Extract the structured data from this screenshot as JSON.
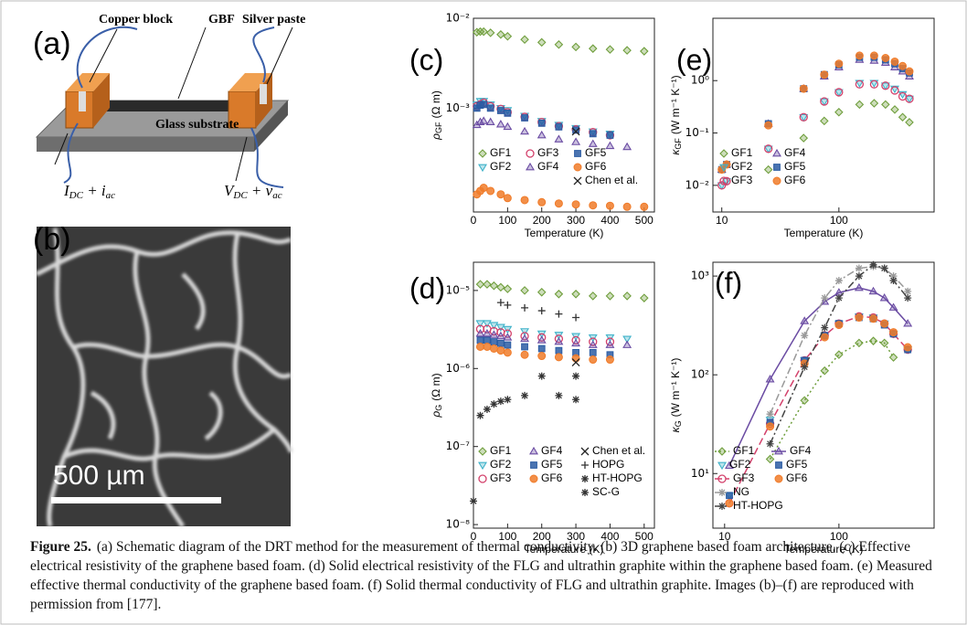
{
  "schematic": {
    "label": "(a)",
    "copper": "Copper block",
    "gbf": "GBF",
    "silver": "Silver paste",
    "substrate": "Glass substrate",
    "current": [
      "I",
      "DC",
      " + i",
      "ac"
    ],
    "voltage": [
      "V",
      "DC",
      " + v",
      "ac"
    ]
  },
  "sem": {
    "label": "(b)",
    "scale_bar": "500 µm"
  },
  "chart_data": [
    {
      "type": "scatter",
      "label": "(c)",
      "x_label": "Temperature (K)",
      "y_label": {
        "symbol": "ρ",
        "sub": "GF",
        "unit": "(Ω m)"
      },
      "x_log": false,
      "y_log": true,
      "xlim": [
        0,
        530
      ],
      "ylim": [
        7e-05,
        0.01
      ],
      "xticks": [
        0,
        100,
        200,
        300,
        400,
        500
      ],
      "yticks": [
        {
          "value": 0.001,
          "label": "10⁻³"
        },
        {
          "value": 0.01,
          "label": "10⁻²"
        }
      ],
      "x": [
        10,
        20,
        30,
        50,
        80,
        100,
        150,
        200,
        250,
        300,
        350,
        400,
        450,
        500
      ],
      "series": [
        {
          "name": "GF1",
          "color": "#6f9e3c",
          "marker": "diamond",
          "values": [
            0.007,
            0.0071,
            0.0071,
            0.0069,
            0.0066,
            0.0063,
            0.0058,
            0.0054,
            0.0051,
            0.0048,
            0.0046,
            0.0045,
            0.0044,
            0.0043
          ]
        },
        {
          "name": "GF2",
          "color": "#3fb2c9",
          "marker": "triangle-down",
          "values": [
            0.0011,
            0.0012,
            0.0012,
            0.0011,
            0.001,
            0.00095,
            0.00082,
            0.00072,
            0.00065,
            0.0006,
            0.00055,
            0.00052,
            null,
            null
          ]
        },
        {
          "name": "GF3",
          "color": "#d3416b",
          "marker": "circle",
          "values": [
            0.00105,
            0.0011,
            0.00115,
            0.00105,
            0.00098,
            0.0009,
            0.0008,
            0.0007,
            0.00063,
            0.00058,
            0.00054,
            0.0005,
            null,
            null
          ]
        },
        {
          "name": "GF4",
          "color": "#6b4ca3",
          "marker": "triangle-up",
          "values": [
            0.00065,
            0.0007,
            0.00072,
            0.0007,
            0.00066,
            0.00062,
            0.00055,
            0.0005,
            0.00045,
            0.00042,
            0.0004,
            0.00038,
            0.00037,
            null
          ]
        },
        {
          "name": "GF5",
          "color": "#2b5ca3",
          "marker": "square",
          "values": [
            0.001,
            0.00108,
            0.0011,
            0.001,
            0.00094,
            0.00088,
            0.00078,
            0.00068,
            0.00062,
            0.00057,
            0.00052,
            0.0005,
            null,
            null
          ]
        },
        {
          "name": "GF6",
          "color": "#f07b29",
          "marker": "filled-circle",
          "values": [
            0.00011,
            0.00012,
            0.00013,
            0.00012,
            0.00011,
            0.0001,
            9.5e-05,
            9e-05,
            8.7e-05,
            8.5e-05,
            8.3e-05,
            8.2e-05,
            8e-05,
            8e-05
          ]
        },
        {
          "name": "Chen et al.",
          "color": "#222222",
          "marker": "x",
          "values": [
            null,
            null,
            null,
            null,
            null,
            null,
            null,
            null,
            null,
            0.00055,
            null,
            null,
            null,
            null
          ]
        }
      ]
    },
    {
      "type": "scatter",
      "label": "(d)",
      "x_label": "Temperature (K)",
      "y_label": {
        "symbol": "ρ",
        "sub": "G",
        "unit": "(Ω m)"
      },
      "x_log": false,
      "y_log": true,
      "xlim": [
        0,
        530
      ],
      "ylim": [
        9e-09,
        2.3e-05
      ],
      "xticks": [
        0,
        100,
        200,
        300,
        400,
        500
      ],
      "yticks": [
        {
          "value": 1e-08,
          "label": "10⁻⁸"
        },
        {
          "value": 1e-07,
          "label": "10⁻⁷"
        },
        {
          "value": 1e-06,
          "label": "10⁻⁶"
        },
        {
          "value": 1e-05,
          "label": "10⁻⁵"
        }
      ],
      "x": [
        0,
        20,
        40,
        60,
        80,
        100,
        150,
        200,
        250,
        300,
        350,
        400,
        450,
        500
      ],
      "series": [
        {
          "name": "GF1",
          "color": "#6f9e3c",
          "marker": "diamond",
          "values": [
            null,
            1.2e-05,
            1.2e-05,
            1.15e-05,
            1.1e-05,
            1.05e-05,
            1e-05,
            9.5e-06,
            9e-06,
            9e-06,
            8.5e-06,
            8.5e-06,
            8.5e-06,
            8e-06
          ]
        },
        {
          "name": "GF2",
          "color": "#3fb2c9",
          "marker": "triangle-down",
          "values": [
            null,
            3.8e-06,
            3.8e-06,
            3.6e-06,
            3.4e-06,
            3.2e-06,
            3e-06,
            2.8e-06,
            2.7e-06,
            2.6e-06,
            2.5e-06,
            2.5e-06,
            2.4e-06,
            null
          ]
        },
        {
          "name": "GF3",
          "color": "#d3416b",
          "marker": "circle",
          "values": [
            null,
            3.2e-06,
            3.2e-06,
            3e-06,
            2.9e-06,
            2.8e-06,
            2.6e-06,
            2.5e-06,
            2.4e-06,
            2.3e-06,
            2.2e-06,
            2.2e-06,
            null,
            null
          ]
        },
        {
          "name": "GF4",
          "color": "#6b4ca3",
          "marker": "triangle-up",
          "values": [
            null,
            2.8e-06,
            2.8e-06,
            2.7e-06,
            2.6e-06,
            2.5e-06,
            2.4e-06,
            2.3e-06,
            2.2e-06,
            2.1e-06,
            2e-06,
            2e-06,
            2e-06,
            null
          ]
        },
        {
          "name": "GF5",
          "color": "#2b5ca3",
          "marker": "square",
          "values": [
            null,
            2.3e-06,
            2.3e-06,
            2.2e-06,
            2.1e-06,
            2e-06,
            1.9e-06,
            1.8e-06,
            1.7e-06,
            1.6e-06,
            1.6e-06,
            1.5e-06,
            null,
            null
          ]
        },
        {
          "name": "GF6",
          "color": "#f07b29",
          "marker": "filled-circle",
          "values": [
            null,
            1.9e-06,
            1.9e-06,
            1.8e-06,
            1.7e-06,
            1.6e-06,
            1.5e-06,
            1.45e-06,
            1.4e-06,
            1.35e-06,
            1.3e-06,
            1.3e-06,
            null,
            null
          ]
        },
        {
          "name": "Chen et al.",
          "color": "#222222",
          "marker": "x",
          "values": [
            null,
            null,
            null,
            null,
            null,
            null,
            null,
            null,
            null,
            1.2e-06,
            null,
            null,
            null,
            null
          ]
        },
        {
          "name": "HOPG",
          "color": "#333333",
          "marker": "plus",
          "values": [
            null,
            null,
            null,
            null,
            7e-06,
            6.5e-06,
            6e-06,
            5.5e-06,
            5e-06,
            4.5e-06,
            null,
            null,
            null,
            null
          ]
        },
        {
          "name": "HT-HOPG",
          "color": "#333333",
          "marker": "asterisk",
          "values": [
            null,
            null,
            null,
            null,
            null,
            null,
            null,
            8e-07,
            null,
            8e-07,
            null,
            null,
            null,
            null
          ]
        },
        {
          "name": "SC-G",
          "color": "#333333",
          "marker": "asterisk",
          "values": [
            2e-08,
            2.5e-07,
            3e-07,
            3.5e-07,
            3.8e-07,
            4e-07,
            4.5e-07,
            null,
            4.5e-07,
            4e-07,
            null,
            null,
            null,
            null
          ]
        }
      ]
    },
    {
      "type": "scatter",
      "label": "(e)",
      "x_label": "Temperature (K)",
      "y_label": {
        "symbol": "κ",
        "sub": "GF",
        "unit": "(W m⁻¹ K⁻¹)"
      },
      "x_log": true,
      "y_log": true,
      "xlim": [
        8.4,
        650
      ],
      "ylim": [
        0.0031,
        15.5
      ],
      "xticks": [
        10,
        100
      ],
      "yticks": [
        {
          "value": 0.01,
          "label": "10⁻²"
        },
        {
          "value": 0.1,
          "label": "10⁻¹"
        },
        {
          "value": 1,
          "label": "10⁰"
        }
      ],
      "x": [
        10,
        11,
        25,
        50,
        75,
        100,
        150,
        200,
        250,
        300,
        350,
        400
      ],
      "series": [
        {
          "name": "GF1",
          "color": "#6f9e3c",
          "marker": "diamond",
          "values": [
            null,
            null,
            0.02,
            0.08,
            0.17,
            0.25,
            0.35,
            0.37,
            0.35,
            0.28,
            0.2,
            0.16
          ]
        },
        {
          "name": "GF2",
          "color": "#3fb2c9",
          "marker": "triangle-down",
          "values": [
            0.01,
            0.012,
            0.05,
            0.2,
            0.4,
            0.6,
            0.9,
            0.9,
            0.8,
            0.7,
            0.55,
            0.45
          ]
        },
        {
          "name": "GF3",
          "color": "#d3416b",
          "marker": "circle",
          "values": [
            0.01,
            0.012,
            0.05,
            0.2,
            0.4,
            0.6,
            0.85,
            0.85,
            0.8,
            0.65,
            0.5,
            0.45
          ]
        },
        {
          "name": "GF4",
          "color": "#6b4ca3",
          "marker": "triangle-up",
          "values": [
            0.02,
            0.025,
            0.15,
            0.7,
            1.2,
            1.8,
            2.5,
            2.4,
            2.2,
            1.8,
            1.5,
            1.2
          ]
        },
        {
          "name": "GF5",
          "color": "#2b5ca3",
          "marker": "square",
          "values": [
            0.02,
            0.025,
            0.15,
            0.7,
            1.3,
            2,
            2.8,
            2.8,
            2.5,
            2.1,
            1.7,
            1.4
          ]
        },
        {
          "name": "GF6",
          "color": "#f07b29",
          "marker": "filled-circle",
          "values": [
            0.02,
            0.025,
            0.14,
            0.7,
            1.3,
            2.1,
            3,
            3,
            2.7,
            2.3,
            1.9,
            1.5
          ]
        }
      ]
    },
    {
      "type": "scatter",
      "label": "(f)",
      "x_label": "Temperature (K)",
      "y_label": {
        "symbol": "κ",
        "sub": "G",
        "unit": "(W m⁻¹ K⁻¹)"
      },
      "x_log": true,
      "y_log": true,
      "xlim": [
        7.9,
        680
      ],
      "ylim": [
        2.8,
        1380
      ],
      "xticks": [
        10,
        100
      ],
      "yticks": [
        {
          "value": 10,
          "label": "10¹"
        },
        {
          "value": 100,
          "label": "10²"
        },
        {
          "value": 1000,
          "label": "10³"
        }
      ],
      "x": [
        11,
        25,
        50,
        75,
        100,
        150,
        200,
        250,
        300,
        400
      ],
      "series": [
        {
          "name": "GF1",
          "color": "#6f9e3c",
          "marker": "diamond",
          "line_style": "dotted",
          "values": [
            null,
            14,
            55,
            110,
            160,
            210,
            220,
            210,
            150,
            null
          ]
        },
        {
          "name": "GF2",
          "color": "#3fb2c9",
          "marker": "triangle-down",
          "values": [
            6,
            35,
            140,
            250,
            330,
            390,
            380,
            330,
            260,
            180
          ]
        },
        {
          "name": "GF3",
          "color": "#d3416b",
          "marker": "circle",
          "line_style": "dashed",
          "values": [
            5,
            32,
            140,
            250,
            330,
            390,
            380,
            330,
            260,
            180
          ]
        },
        {
          "name": "GF4",
          "color": "#6b4ca3",
          "marker": "triangle-up",
          "line_style": "solid",
          "values": [
            12,
            90,
            350,
            550,
            680,
            760,
            700,
            600,
            480,
            330
          ]
        },
        {
          "name": "GF5",
          "color": "#2b5ca3",
          "marker": "square",
          "values": [
            6,
            33,
            140,
            250,
            330,
            380,
            370,
            320,
            260,
            180
          ]
        },
        {
          "name": "GF6",
          "color": "#f07b29",
          "marker": "filled-circle",
          "values": [
            5,
            30,
            130,
            240,
            320,
            380,
            370,
            330,
            270,
            190
          ]
        },
        {
          "name": "NG",
          "color": "#999999",
          "marker": "star",
          "line_style": "dashdot",
          "values": [
            null,
            40,
            250,
            600,
            900,
            1200,
            1250,
            1200,
            1000,
            700
          ]
        },
        {
          "name": "HT-HOPG",
          "color": "#444444",
          "marker": "asterisk",
          "line_style": "dashdot",
          "values": [
            null,
            20,
            120,
            300,
            600,
            1000,
            1300,
            1200,
            900,
            600
          ]
        }
      ]
    }
  ],
  "caption": {
    "label": "Figure 25.",
    "text": "(a) Schematic diagram of the DRT method for the measurement of thermal conductivity. (b) 3D graphene based foam architecture. (c) Effective electrical resistivity of the graphene based foam. (d) Solid electrical resistivity of the FLG and ultrathin graphite within the graphene based foam. (e) Measured effective thermal conductivity of the graphene based foam. (f) Solid thermal conductivity of FLG and ultrathin graphite. Images (b)–(f) are reproduced with permission from",
    "ref": "[177]",
    "end": "."
  }
}
